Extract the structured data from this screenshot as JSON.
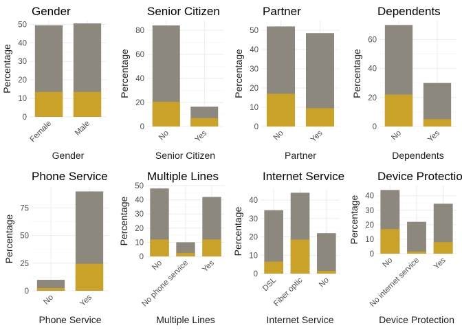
{
  "colors": {
    "total": "#8c887d",
    "churn": "#c9a227"
  },
  "chart_data": [
    {
      "type": "bar",
      "stacked_overlay": true,
      "title": "Gender",
      "xlabel": "Gender",
      "ylabel": "Percentage",
      "categories": [
        "Female",
        "Male"
      ],
      "ylim": [
        0,
        52
      ],
      "yticks": [
        0,
        10,
        20,
        30,
        40,
        50
      ],
      "rotate_x": true,
      "series": [
        {
          "values": [
            49.5,
            50.5
          ]
        },
        {
          "values": [
            13.5,
            13.5
          ]
        }
      ]
    },
    {
      "type": "bar",
      "stacked_overlay": true,
      "title": "Senior Citizen",
      "xlabel": "Senior Citizen",
      "ylabel": "Percentage",
      "categories": [
        "No",
        "Yes"
      ],
      "ylim": [
        0,
        88
      ],
      "yticks": [
        0,
        20,
        40,
        60,
        80
      ],
      "rotate_x": true,
      "series": [
        {
          "values": [
            84,
            16.5
          ]
        },
        {
          "values": [
            20.5,
            7
          ]
        }
      ]
    },
    {
      "type": "bar",
      "stacked_overlay": true,
      "title": "Partner",
      "xlabel": "Partner",
      "ylabel": "Percentage",
      "categories": [
        "No",
        "Yes"
      ],
      "ylim": [
        0,
        55
      ],
      "yticks": [
        0,
        10,
        20,
        30,
        40,
        50
      ],
      "rotate_x": true,
      "series": [
        {
          "values": [
            52,
            48.5
          ]
        },
        {
          "values": [
            17,
            9.5
          ]
        }
      ]
    },
    {
      "type": "bar",
      "stacked_overlay": true,
      "title": "Dependents",
      "xlabel": "Dependents",
      "ylabel": "Percentage",
      "categories": [
        "No",
        "Yes"
      ],
      "ylim": [
        0,
        73
      ],
      "yticks": [
        0,
        20,
        40,
        60
      ],
      "rotate_x": true,
      "series": [
        {
          "values": [
            70,
            30
          ]
        },
        {
          "values": [
            22,
            5
          ]
        }
      ]
    },
    {
      "type": "bar",
      "stacked_overlay": true,
      "title": "Phone Service",
      "xlabel": "Phone Service",
      "ylabel": "Percentage",
      "categories": [
        "No",
        "Yes"
      ],
      "ylim": [
        0,
        94
      ],
      "yticks": [
        0,
        25,
        50,
        75
      ],
      "rotate_x": true,
      "series": [
        {
          "values": [
            10,
            90
          ]
        },
        {
          "values": [
            2.5,
            24.5
          ]
        }
      ]
    },
    {
      "type": "bar",
      "stacked_overlay": true,
      "title": "Multiple Lines",
      "xlabel": "Multiple Lines",
      "ylabel": "Percentage",
      "categories": [
        "No",
        "No phone service",
        "Yes"
      ],
      "ylim": [
        0,
        50
      ],
      "yticks": [
        0,
        10,
        20,
        30,
        40,
        50
      ],
      "rotate_x": true,
      "series": [
        {
          "values": [
            48,
            10,
            42
          ]
        },
        {
          "values": [
            12,
            2.5,
            12
          ]
        }
      ]
    },
    {
      "type": "bar",
      "stacked_overlay": true,
      "title": "Internet Service",
      "xlabel": "Internet Service",
      "ylabel": "Percentage",
      "categories": [
        "DSL",
        "Fiber optic",
        "No"
      ],
      "ylim": [
        0,
        46
      ],
      "yticks": [
        0,
        10,
        20,
        30,
        40
      ],
      "rotate_x": true,
      "series": [
        {
          "values": [
            34.5,
            44,
            22
          ]
        },
        {
          "values": [
            6.5,
            18.5,
            1.5
          ]
        }
      ]
    },
    {
      "type": "bar",
      "stacked_overlay": true,
      "title": "Device Protection",
      "xlabel": "Device Protection",
      "ylabel": "Percentage",
      "categories": [
        "No",
        "No internet service",
        "Yes"
      ],
      "ylim": [
        0,
        47
      ],
      "yticks": [
        0,
        10,
        20,
        30,
        40
      ],
      "rotate_x": true,
      "series": [
        {
          "values": [
            44,
            22,
            34.5
          ]
        },
        {
          "values": [
            17,
            1.5,
            8
          ]
        }
      ]
    }
  ]
}
